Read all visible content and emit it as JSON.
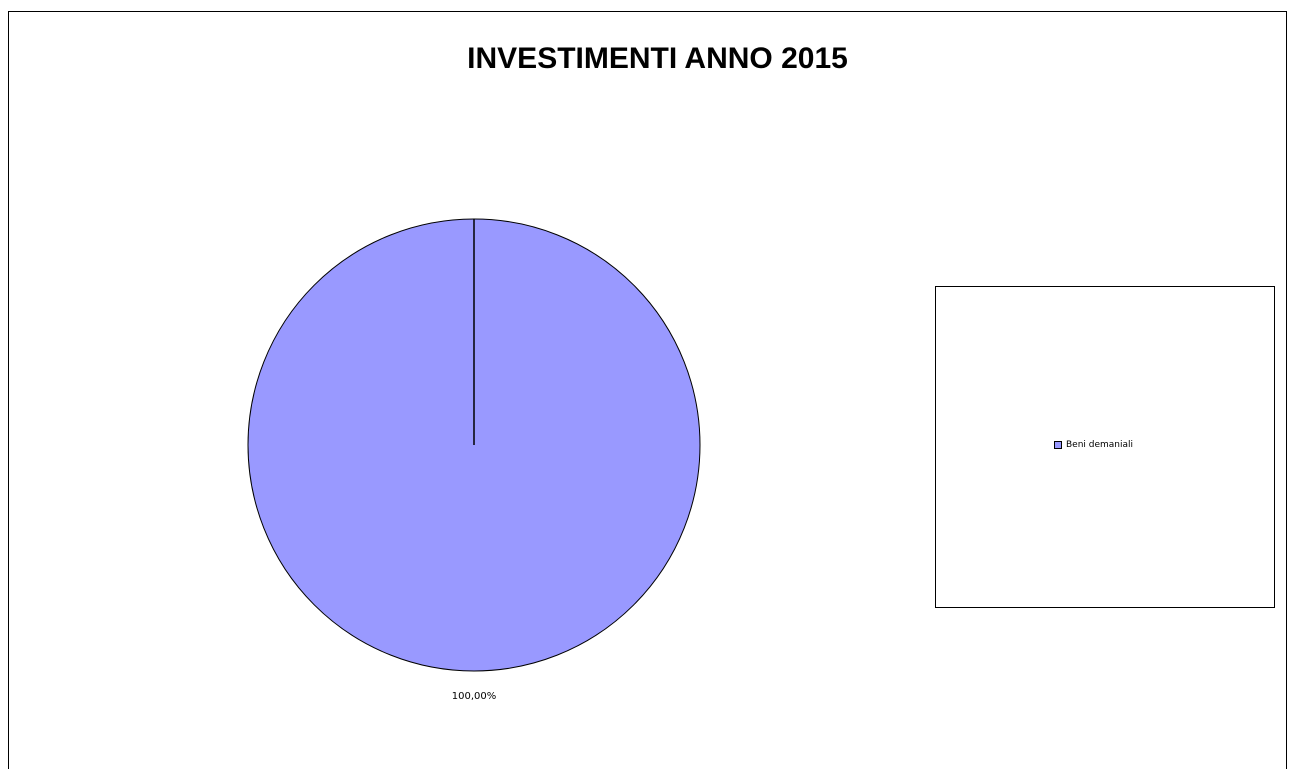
{
  "chart_data": {
    "type": "pie",
    "title": "INVESTIMENTI ANNO 2015",
    "categories": [
      "Beni demaniali"
    ],
    "values": [
      100.0
    ],
    "data_labels": [
      "100,00%"
    ],
    "colors": [
      "#9999ff"
    ],
    "legend_position": "right"
  }
}
